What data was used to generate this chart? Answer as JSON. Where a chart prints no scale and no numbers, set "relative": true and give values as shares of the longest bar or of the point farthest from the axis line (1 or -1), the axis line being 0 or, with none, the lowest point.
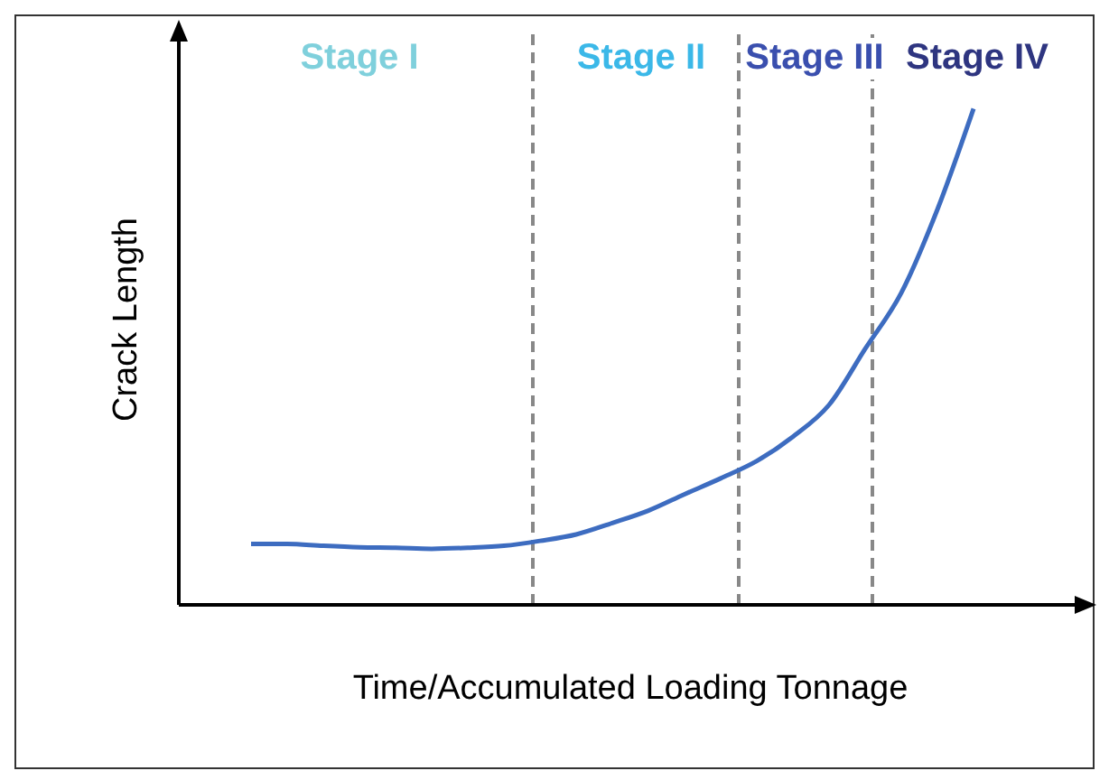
{
  "chart_data": {
    "type": "line",
    "relative": true,
    "xlabel": "Time/Accumulated Loading Tonnage",
    "ylabel": "Crack Length",
    "marker": "none",
    "categories": [
      null,
      null,
      null,
      null,
      null,
      null,
      null,
      null,
      null,
      null,
      null,
      null,
      null,
      null,
      null,
      null,
      null,
      null,
      null,
      null,
      null,
      null,
      null,
      null,
      null,
      null
    ],
    "series": [
      {
        "color": "#3d6cc0",
        "values": [
          null,
          null,
          0.123,
          0.123,
          0.119,
          0.116,
          0.115,
          0.113,
          0.115,
          0.119,
          0.129,
          0.142,
          0.165,
          0.19,
          0.223,
          0.255,
          0.29,
          0.339,
          0.403,
          0.516,
          0.629,
          0.797,
          1.0,
          null,
          null,
          null
        ]
      }
    ],
    "annotations": [
      "Stage I",
      "Stage II",
      "Stage III",
      "Stage IV"
    ]
  }
}
